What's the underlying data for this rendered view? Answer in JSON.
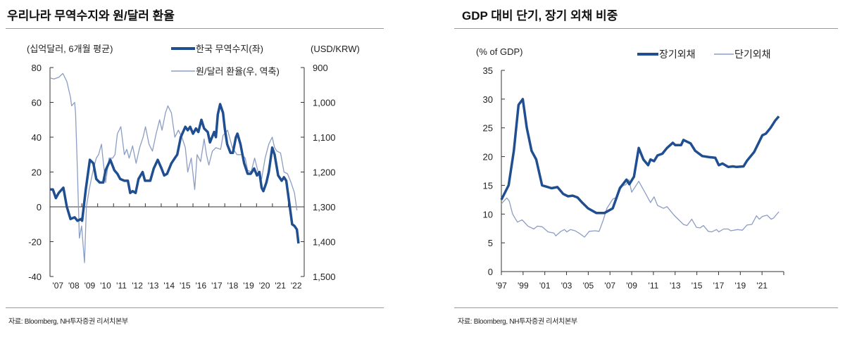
{
  "charts_meta": {
    "left_title": "우리나라 무역수지와 원/달러 환율",
    "right_title": "GDP 대비 단기, 장기 외채 비중",
    "source_left": "자료: Bloomberg, NH투자증권 리서치본부",
    "source_right": "자료: Bloomberg, NH투자증권 리서치본부",
    "colors": {
      "dark": "#1f4e91",
      "light": "#8c9dc4",
      "axis": "#333333"
    }
  },
  "chart_data": [
    {
      "type": "line",
      "title": "우리나라 무역수지와 원/달러 환율",
      "ylabel": "(십억달러, 6개월 평균)",
      "y2label": "(USD/KRW)",
      "ylim": [
        -40,
        80
      ],
      "yticks": [
        "80",
        "60",
        "40",
        "20",
        "0",
        "-20",
        "-40"
      ],
      "y2lim": [
        900,
        1500
      ],
      "y2_inverted": true,
      "y2ticks": [
        "900",
        "1,000",
        "1,100",
        "1,200",
        "1,300",
        "1,400",
        "1,500"
      ],
      "xlim": [
        2007,
        2023
      ],
      "xticks": [
        "'07",
        "'08",
        "'09",
        "'10",
        "'11",
        "'12",
        "'13",
        "'14",
        "'15",
        "'16",
        "'17",
        "'18",
        "'19",
        "'20",
        "'21",
        "'22"
      ],
      "legend": "top",
      "series": [
        {
          "name": "한국 무역수지(좌)",
          "axis": "left",
          "style": "thick",
          "x": [
            2007.0,
            2007.18,
            2007.37,
            2007.55,
            2007.84,
            2008.06,
            2008.29,
            2008.55,
            2008.73,
            2008.95,
            2009.02,
            2009.25,
            2009.51,
            2009.73,
            2009.91,
            2010.13,
            2010.35,
            2010.5,
            2010.8,
            2011.05,
            2011.24,
            2011.42,
            2011.68,
            2011.9,
            2012.05,
            2012.2,
            2012.39,
            2012.57,
            2012.83,
            2012.98,
            2013.31,
            2013.53,
            2013.78,
            2014.02,
            2014.19,
            2014.37,
            2014.64,
            2014.86,
            2015.01,
            2015.23,
            2015.52,
            2015.67,
            2015.82,
            2016.0,
            2016.19,
            2016.34,
            2016.53,
            2016.7,
            2016.93,
            2017.07,
            2017.33,
            2017.44,
            2017.56,
            2017.71,
            2017.89,
            2018.0,
            2018.15,
            2018.36,
            2018.51,
            2018.7,
            2018.8,
            2018.99,
            2019.22,
            2019.44,
            2019.63,
            2019.85,
            2020.03,
            2020.18,
            2020.32,
            2020.43,
            2020.62,
            2020.77,
            2020.99,
            2021.14,
            2021.36,
            2021.58,
            2021.73,
            2021.87,
            2022.02,
            2022.24,
            2022.39,
            2022.54,
            2022.64
          ],
          "values": [
            10,
            10,
            5,
            8,
            11,
            0,
            -7,
            -6,
            -8,
            -7,
            -8,
            10,
            27,
            25,
            16,
            14,
            14,
            21,
            27,
            21,
            19,
            16,
            15,
            15,
            8,
            9,
            8,
            16,
            20,
            15,
            15,
            22,
            27,
            22,
            18,
            19,
            25,
            28,
            30,
            40,
            46,
            44,
            46,
            42,
            45,
            43,
            50,
            45,
            43,
            37,
            43,
            40,
            53,
            59,
            54,
            45,
            36,
            31,
            31,
            40,
            42,
            36,
            25,
            19,
            19,
            22,
            18,
            20,
            11,
            9,
            14,
            20,
            34,
            30,
            18,
            15,
            17,
            15,
            5,
            -10,
            -11,
            -13,
            -21
          ]
        },
        {
          "name": "원/달러 환율(우, 역축)",
          "axis": "right",
          "style": "thin",
          "x": [
            2007.0,
            2007.25,
            2007.55,
            2007.81,
            2008.06,
            2008.29,
            2008.36,
            2008.55,
            2008.61,
            2008.73,
            2008.85,
            2008.99,
            2009.17,
            2009.29,
            2009.47,
            2009.69,
            2009.91,
            2010.06,
            2010.24,
            2010.35,
            2010.5,
            2010.72,
            2010.94,
            2011.09,
            2011.24,
            2011.46,
            2011.68,
            2011.83,
            2011.98,
            2012.2,
            2012.42,
            2012.64,
            2012.86,
            2013.01,
            2013.23,
            2013.45,
            2013.68,
            2013.9,
            2014.05,
            2014.27,
            2014.42,
            2014.64,
            2014.86,
            2015.08,
            2015.3,
            2015.52,
            2015.67,
            2015.89,
            2016.11,
            2016.26,
            2016.48,
            2016.7,
            2016.85,
            2017.0,
            2017.22,
            2017.44,
            2017.74,
            2017.89,
            2018.18,
            2018.48,
            2018.77,
            2019.07,
            2019.29,
            2019.44,
            2019.66,
            2019.88,
            2020.1,
            2020.32,
            2020.54,
            2020.77,
            2020.99,
            2021.14,
            2021.28,
            2021.51,
            2021.73,
            2021.95,
            2022.17,
            2022.39,
            2022.54
          ],
          "values": [
            930,
            933,
            928,
            917,
            940,
            985,
            1010,
            1000,
            1030,
            1200,
            1390,
            1355,
            1460,
            1300,
            1250,
            1200,
            1160,
            1150,
            1120,
            1170,
            1230,
            1160,
            1160,
            1150,
            1090,
            1070,
            1150,
            1135,
            1160,
            1125,
            1175,
            1130,
            1100,
            1070,
            1120,
            1140,
            1090,
            1050,
            1080,
            1030,
            1010,
            1030,
            1100,
            1080,
            1100,
            1130,
            1200,
            1160,
            1250,
            1150,
            1170,
            1105,
            1150,
            1180,
            1140,
            1130,
            1135,
            1095,
            1080,
            1130,
            1150,
            1150,
            1160,
            1195,
            1200,
            1160,
            1200,
            1220,
            1160,
            1120,
            1100,
            1130,
            1140,
            1145,
            1200,
            1205,
            1230,
            1260,
            1310
          ]
        }
      ]
    },
    {
      "type": "line",
      "title": "GDP 대비 단기, 장기 외채 비중",
      "ylabel": "(% of GDP)",
      "ylim": [
        0,
        35
      ],
      "yticks": [
        "35",
        "30",
        "25",
        "20",
        "15",
        "10",
        "5",
        "0"
      ],
      "xlim": [
        1997,
        2023
      ],
      "xticks": [
        "'97",
        "'99",
        "'01",
        "'03",
        "'05",
        "'07",
        "'09",
        "'11",
        "'13",
        "'15",
        "'17",
        "'19",
        "'21"
      ],
      "legend": "top-right",
      "series": [
        {
          "name": "장기외채",
          "style": "thick",
          "x": [
            1997.0,
            1997.67,
            1998.15,
            1998.58,
            1998.97,
            1999.34,
            1999.78,
            2000.21,
            2000.75,
            2001.62,
            2002.16,
            2002.7,
            2003.14,
            2003.57,
            2004.01,
            2004.44,
            2004.98,
            2005.74,
            2006.5,
            2007.26,
            2007.91,
            2008.52,
            2008.78,
            2009.21,
            2009.65,
            2010.08,
            2010.51,
            2010.73,
            2011.06,
            2011.38,
            2011.82,
            2012.25,
            2012.79,
            2013.01,
            2013.55,
            2013.77,
            2014.42,
            2014.85,
            2015.5,
            2016.15,
            2016.7,
            2017.02,
            2017.35,
            2017.89,
            2018.32,
            2018.65,
            2019.3,
            2019.62,
            2020.28,
            2021.03,
            2021.36,
            2021.79,
            2022.23,
            2022.55
          ],
          "values": [
            12.5,
            15,
            21,
            29,
            30,
            25,
            21,
            19.5,
            15,
            14.5,
            14.7,
            13.5,
            13.1,
            13.2,
            12.9,
            12,
            11,
            10.2,
            10.2,
            11,
            14.5,
            16,
            15.2,
            16.5,
            21.5,
            19.5,
            18.5,
            19.5,
            19.2,
            20.2,
            20.5,
            21.5,
            22.4,
            22,
            22,
            22.9,
            22.3,
            21,
            20.1,
            19.9,
            19.8,
            18.5,
            18.8,
            18.2,
            18.3,
            18.2,
            18.3,
            19.3,
            20.8,
            23.7,
            24,
            25,
            26.3,
            27
          ]
        },
        {
          "name": "단기외채",
          "style": "thin",
          "x": [
            1997.0,
            1997.5,
            1997.72,
            1998.04,
            1998.48,
            1998.91,
            1999.45,
            1999.99,
            2000.32,
            2000.75,
            2001.3,
            2001.84,
            2002.01,
            2002.49,
            2002.81,
            2003.03,
            2003.36,
            2003.79,
            2004.22,
            2004.66,
            2005.09,
            2005.63,
            2006.0,
            2006.39,
            2006.72,
            2007.26,
            2007.69,
            2007.91,
            2008.45,
            2008.74,
            2009.0,
            2009.65,
            2010.3,
            2010.73,
            2011.06,
            2011.38,
            2011.92,
            2012.25,
            2012.9,
            2013.33,
            2013.77,
            2014.09,
            2014.53,
            2014.96,
            2015.29,
            2015.61,
            2016.05,
            2016.37,
            2016.81,
            2017.02,
            2017.46,
            2017.89,
            2018.11,
            2018.76,
            2019.19,
            2019.62,
            2020.06,
            2020.49,
            2020.75,
            2021.03,
            2021.47,
            2021.85,
            2022.06,
            2022.55
          ],
          "values": [
            11.8,
            12.8,
            12.3,
            10,
            8.6,
            9,
            7.9,
            7.4,
            7.9,
            7.8,
            6.9,
            6.7,
            6.2,
            7,
            7.3,
            6.9,
            7.3,
            7.1,
            6.6,
            6,
            7,
            7.1,
            7,
            9,
            11,
            12.6,
            13,
            14.8,
            15.1,
            16,
            13.8,
            15.7,
            13.5,
            12,
            13,
            11.5,
            11,
            11.3,
            9.8,
            9,
            8.2,
            8,
            9.1,
            7.7,
            7.6,
            8,
            7,
            6.9,
            7.3,
            6.9,
            7.4,
            7.4,
            7.1,
            7.3,
            7.2,
            8.1,
            8.2,
            9.7,
            9.1,
            9.6,
            9.8,
            9.1,
            9.3,
            10.4
          ]
        }
      ]
    }
  ]
}
